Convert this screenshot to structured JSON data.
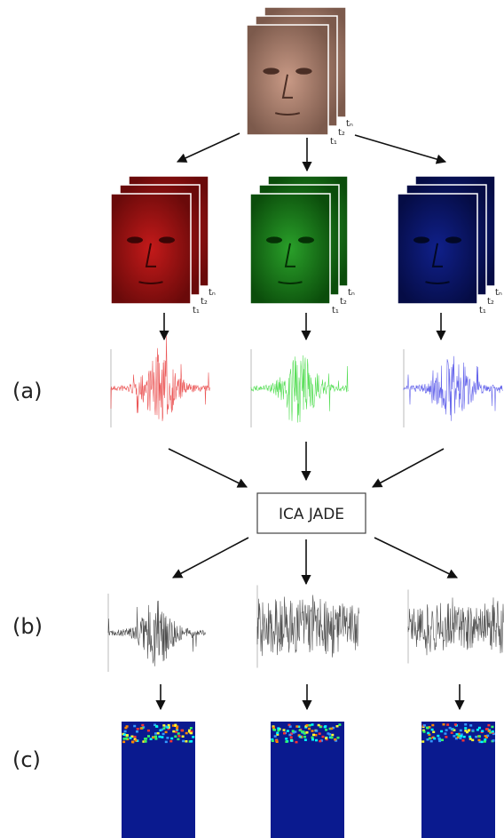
{
  "labels": {
    "a": "(a)",
    "b": "(b)",
    "c": "(c)"
  },
  "box": "ICA JADE",
  "frames": [
    "t₁",
    "t₂",
    "tₙ"
  ]
}
